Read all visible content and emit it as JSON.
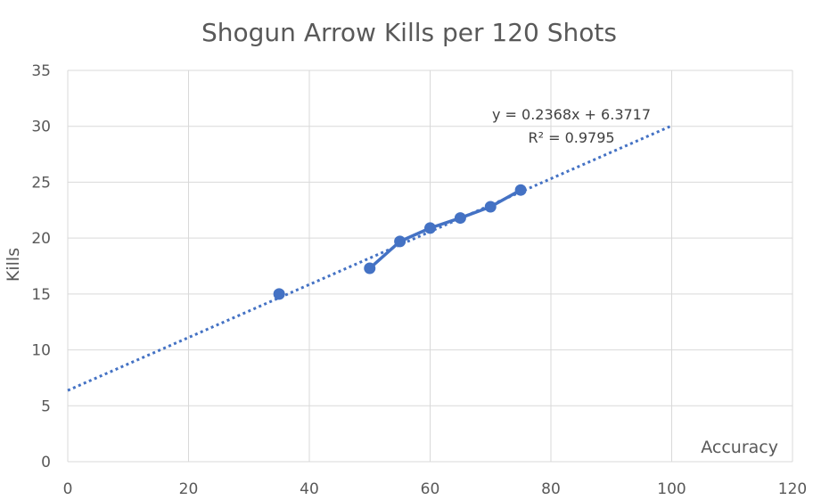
{
  "chart_data": {
    "type": "scatter",
    "title": "Shogun Arrow Kills per 120 Shots",
    "xlabel": "Accuracy",
    "ylabel": "Kills",
    "xlim": [
      0,
      120
    ],
    "ylim": [
      0,
      35
    ],
    "x_ticks": [
      0,
      20,
      40,
      60,
      80,
      100,
      120
    ],
    "y_ticks": [
      0,
      5,
      10,
      15,
      20,
      25,
      30,
      35
    ],
    "grid": true,
    "legend": "none",
    "series": [
      {
        "points": [
          {
            "x": 35,
            "y": 15.0
          },
          {
            "x": 50,
            "y": 17.3
          },
          {
            "x": 55,
            "y": 19.7
          },
          {
            "x": 60,
            "y": 20.9
          },
          {
            "x": 65,
            "y": 21.8
          },
          {
            "x": 70,
            "y": 22.8
          },
          {
            "x": 75,
            "y": 24.3
          }
        ],
        "connected_from": 1,
        "color": "#4472c4"
      }
    ],
    "trendline": {
      "type": "linear",
      "slope": 0.2368,
      "intercept": 6.3717,
      "x_range": [
        0,
        100
      ],
      "style": "dotted",
      "color": "#4472c4",
      "equation_label": "y = 0.2368x + 6.3717",
      "r2_label": "R² = 0.9795"
    }
  }
}
